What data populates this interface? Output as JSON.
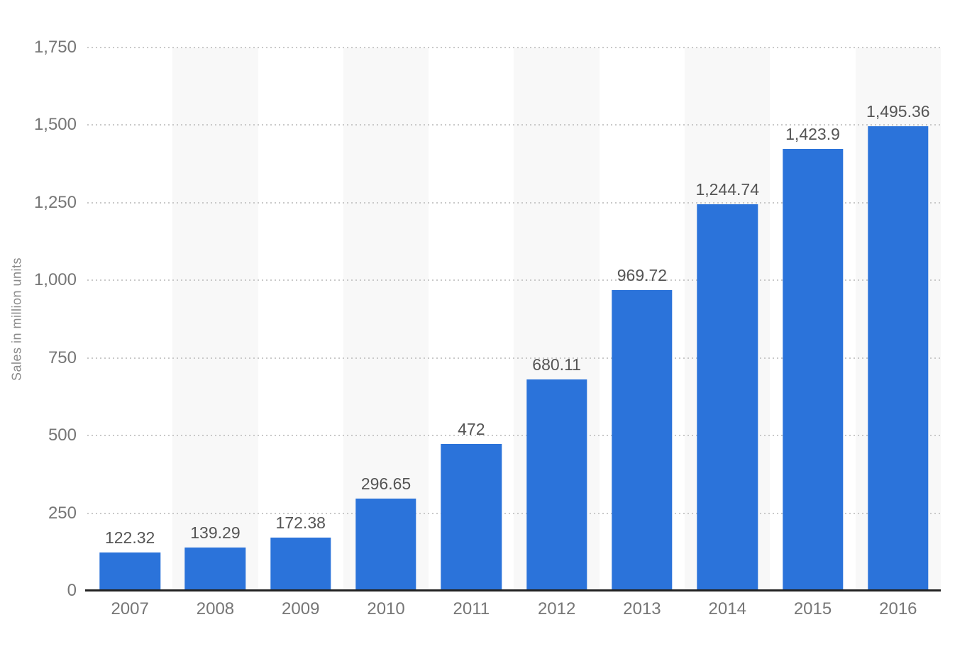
{
  "chart_data": {
    "type": "bar",
    "title": "",
    "ylabel": "Sales in million units",
    "xlabel": "",
    "categories": [
      "2007",
      "2008",
      "2009",
      "2010",
      "2011",
      "2012",
      "2013",
      "2014",
      "2015",
      "2016"
    ],
    "values": [
      122.32,
      139.29,
      172.38,
      296.65,
      472,
      680.11,
      969.72,
      1244.74,
      1423.9,
      1495.36
    ],
    "value_labels": [
      "122.32",
      "139.29",
      "172.38",
      "296.65",
      "472",
      "680.11",
      "969.72",
      "1,244.74",
      "1,423.9",
      "1,495.36"
    ],
    "ylim": [
      0,
      1750
    ],
    "yticks": [
      0,
      250,
      500,
      750,
      1000,
      1250,
      1500,
      1750
    ],
    "ytick_labels": [
      "0",
      "250",
      "500",
      "750",
      "1,000",
      "1,250",
      "1,500",
      "1,750"
    ],
    "grid": "horizontal-dotted",
    "legend": "none",
    "striped_categories": [
      "2008",
      "2010",
      "2012",
      "2014",
      "2016"
    ],
    "colors": {
      "bar": "#2b73da",
      "column_stripe": "#f8f8f8",
      "gridline": "#c9c9c9",
      "baseline": "#222222",
      "tick_label": "#767676",
      "value_label": "#555555",
      "axis_title": "#8a8a8a"
    }
  }
}
